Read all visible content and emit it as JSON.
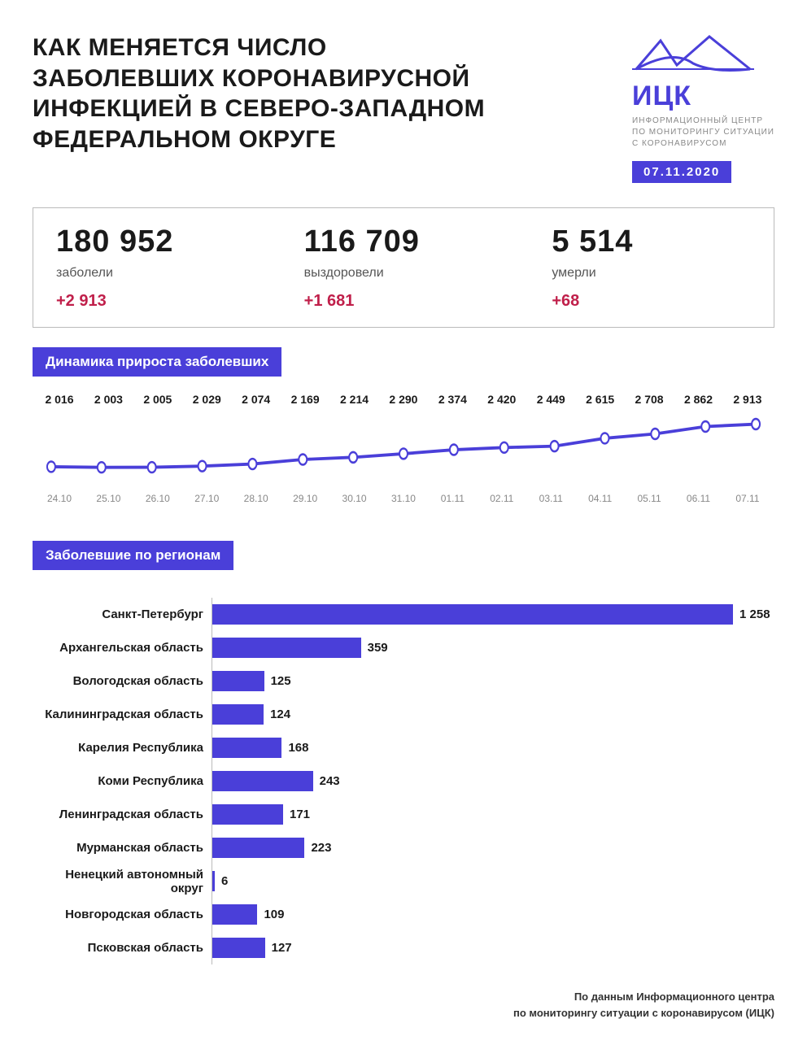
{
  "title": "КАК МЕНЯЕТСЯ ЧИСЛО ЗАБОЛЕВШИХ КОРОНАВИРУСНОЙ ИНФЕКЦИЕЙ В СЕВЕРО-ЗАПАДНОМ ФЕДЕРАЛЬНОМ ОКРУГЕ",
  "logo": {
    "text": "ИЦК",
    "sub1": "ИНФОРМАЦИОННЫЙ ЦЕНТР",
    "sub2": "ПО МОНИТОРИНГУ СИТУАЦИИ",
    "sub3": "С КОРОНАВИРУСОМ",
    "color": "#4a3fd9"
  },
  "date": "07.11.2020",
  "stats": [
    {
      "value": "180 952",
      "label": "заболели",
      "delta": "+2 913",
      "delta_color": "#c01f4a"
    },
    {
      "value": "116 709",
      "label": "выздоровели",
      "delta": "+1 681",
      "delta_color": "#c01f4a"
    },
    {
      "value": "5 514",
      "label": "умерли",
      "delta": "+68",
      "delta_color": "#c01f4a"
    }
  ],
  "line_chart": {
    "title": "Динамика прироста заболевших",
    "color": "#4a3fd9",
    "marker_fill": "#ffffff",
    "marker_stroke": "#4a3fd9",
    "line_width": 3,
    "marker_radius": 5,
    "ymin": 1900,
    "ymax": 3000,
    "dates": [
      "24.10",
      "25.10",
      "26.10",
      "27.10",
      "28.10",
      "29.10",
      "30.10",
      "31.10",
      "01.11",
      "02.11",
      "03.11",
      "04.11",
      "05.11",
      "06.11",
      "07.11"
    ],
    "values": [
      2016,
      2003,
      2005,
      2029,
      2074,
      2169,
      2214,
      2290,
      2374,
      2420,
      2449,
      2615,
      2708,
      2862,
      2913
    ],
    "value_labels": [
      "2 016",
      "2 003",
      "2 005",
      "2 029",
      "2 074",
      "2 169",
      "2 214",
      "2 290",
      "2 374",
      "2 420",
      "2 449",
      "2 615",
      "2 708",
      "2 862",
      "2 913"
    ]
  },
  "bar_chart": {
    "title": "Заболевшие по регионам",
    "color": "#4a3fd9",
    "max": 1258,
    "rows": [
      {
        "label": "Санкт-Петербург",
        "value": 1258,
        "value_label": "1 258"
      },
      {
        "label": "Архангельская область",
        "value": 359,
        "value_label": "359"
      },
      {
        "label": "Вологодская область",
        "value": 125,
        "value_label": "125"
      },
      {
        "label": "Калининградская область",
        "value": 124,
        "value_label": "124"
      },
      {
        "label": "Карелия Республика",
        "value": 168,
        "value_label": "168"
      },
      {
        "label": "Коми Республика",
        "value": 243,
        "value_label": "243"
      },
      {
        "label": "Ленинградская область",
        "value": 171,
        "value_label": "171"
      },
      {
        "label": "Мурманская область",
        "value": 223,
        "value_label": "223"
      },
      {
        "label": "Ненецкий автономный округ",
        "value": 6,
        "value_label": "6"
      },
      {
        "label": "Новгородская область",
        "value": 109,
        "value_label": "109"
      },
      {
        "label": "Псковская область",
        "value": 127,
        "value_label": "127"
      }
    ]
  },
  "footer": {
    "line1": "По данным Информационного центра",
    "line2": "по мониторингу ситуации с коронавирусом (ИЦК)"
  },
  "colors": {
    "primary": "#4a3fd9",
    "text": "#1a1a1a",
    "muted": "#888888",
    "border": "#bbbbbb",
    "background": "#ffffff"
  }
}
